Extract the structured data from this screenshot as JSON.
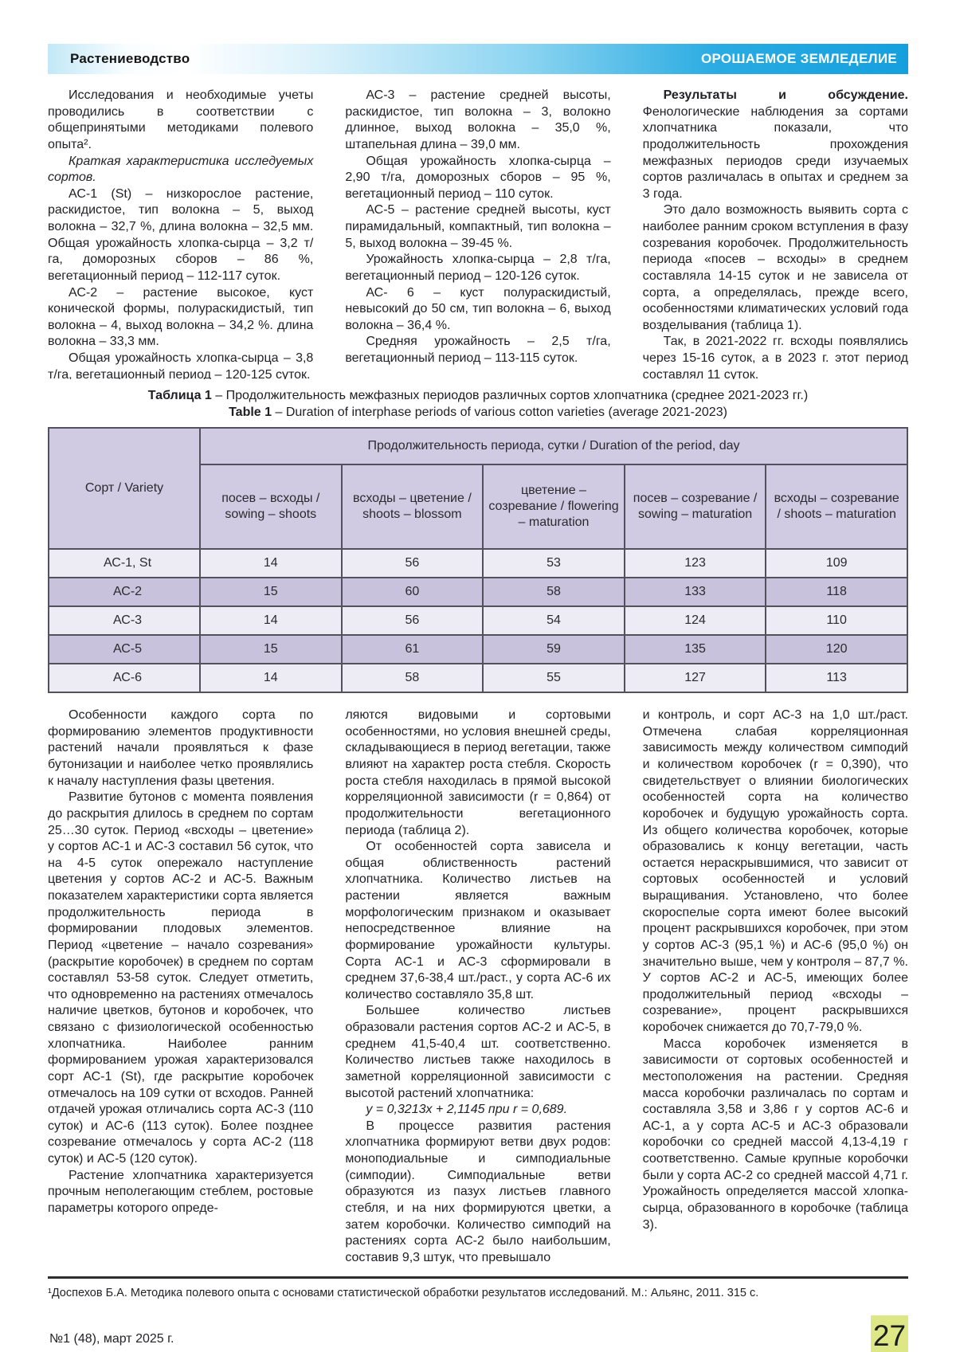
{
  "header": {
    "left": "Растениеводство",
    "right": "ОРОШАЕМОЕ ЗЕМЛЕДЕЛИЕ"
  },
  "colors": {
    "accent_blue": "#29abe2",
    "table_header_bg": "#d0cbe2",
    "table_row_light": "#edebf4",
    "table_row_dark": "#c8c2dc",
    "footer_green": "#d9e38a"
  },
  "top_columns": {
    "col1": {
      "p1": "Исследования и необходимые учеты проводились в соответствии с общепринятыми методиками полевого опыта².",
      "p2_italic": "Краткая характеристика исследуемых сортов.",
      "p3": "АС-1 (St) – низкорослое растение, раскидистое, тип волокна – 5, выход волокна – 32,7 %, длина волокна – 32,5 мм. Общая урожайность хлопка-сырца – 3,2 т/га, доморозных сборов – 86 %, вегетационный период – 112-117 суток.",
      "p4": "АС-2 – растение высокое, куст конической формы, полураскидистый, тип волокна – 4, выход волокна – 34,2 %. длина волокна – 33,3 мм.",
      "p5": "Общая урожайность хлопка-сырца – 3,8 т/га, вегетационный период – 120-125 суток."
    },
    "col2": {
      "p1": "АС-3 – растение средней высоты, раскидистое, тип волокна – 3, волокно длинное, выход волокна – 35,0 %, штапельная длина – 39,0 мм.",
      "p2": "Общая урожайность хлопка-сырца – 2,90 т/га, доморозных сборов – 95 %, вегетационный период – 110 суток.",
      "p3": "АС-5 – растение средней высоты, куст пирамидальный, компактный, тип волокна – 5, выход волокна – 39-45 %.",
      "p4": "Урожайность хлопка-сырца – 2,8 т/га, вегетационный период – 120-126 суток.",
      "p5": "АС- 6 – куст полураскидистый, невысокий до 50 см, тип волокна – 6, выход волокна – 36,4 %.",
      "p6": "Средняя урожайность – 2,5 т/га, вегетационный период – 113-115 суток."
    },
    "col3": {
      "p1_bold": "Результаты и обсуждение.",
      "p1_rest": " Фенологические наблюдения за сортами хлопчатника показали, что продолжительность прохождения межфазных периодов среди изучаемых сортов различалась в опытах и среднем за 3 года.",
      "p2": "Это дало возможность выявить сорта с наиболее ранним сроком вступления в фазу созревания коробочек. Продолжительность периода «посев – всходы» в среднем составляла 14-15 суток и не зависела от сорта, а определялась, прежде всего, особенностями климатических условий года возделывания (таблица 1).",
      "p3": "Так, в 2021-2022 гг. всходы появлялись через 15-16 суток, а в 2023 г. этот период составлял 11 суток."
    }
  },
  "table_caption": {
    "ru_label": "Таблица 1",
    "ru_text": " – Продолжительность межфазных периодов различных сортов хлопчатника (среднее 2021-2023 гг.)",
    "en_label": "Table 1",
    "en_text": " – Duration of interphase periods of various cotton varieties (average 2021-2023)"
  },
  "table": {
    "corner": "Сорт / Variety",
    "group_header": "Продолжительность периода, сутки / Duration of the period, day",
    "columns": [
      "посев – всходы / sowing – shoots",
      "всходы – цветение / shoots – blossom",
      "цветение – созревание / flowering – maturation",
      "посев – созревание / sowing – maturation",
      "всходы – созревание / shoots – maturation"
    ],
    "rows": [
      [
        "АС-1, St",
        "14",
        "56",
        "53",
        "123",
        "109"
      ],
      [
        "АС-2",
        "15",
        "60",
        "58",
        "133",
        "118"
      ],
      [
        "АС-3",
        "14",
        "56",
        "54",
        "124",
        "110"
      ],
      [
        "АС-5",
        "15",
        "61",
        "59",
        "135",
        "120"
      ],
      [
        "АС-6",
        "14",
        "58",
        "55",
        "127",
        "113"
      ]
    ]
  },
  "bottom_columns": {
    "col1": {
      "p1": "Особенности каждого сорта по формированию элементов продуктивности растений начали проявляться к фазе бутонизации и наиболее четко проявлялись к началу наступления фазы цветения.",
      "p2": "Развитие бутонов с момента появления до раскрытия длилось в среднем по сортам 25…30 суток. Период «всходы – цветение» у сортов АС-1 и АС-3 составил 56 суток, что на 4-5 суток опережало наступление цветения у сортов АС-2 и АС-5. Важным показателем характеристики сорта является продолжительность периода в формировании плодовых элементов. Период «цветение – начало созревания» (раскрытие коробочек) в среднем по сортам составлял 53-58 суток. Следует отметить, что одновременно на растениях отмечалось наличие цветков, бутонов и коробочек, что связано с физиологической особенностью хлопчатника. Наиболее ранним формированием урожая характеризовался сорт АС-1 (St), где раскрытие коробочек отмечалось на 109 сутки от всходов. Ранней отдачей урожая отличались сорта АС-3 (110 суток) и АС-6 (113 суток). Более позднее созревание отмечалось у сорта АС-2 (118 суток) и АС-5 (120 суток).",
      "p3": "Растение хлопчатника характеризуется прочным неполегающим стеблем, ростовые параметры которого опреде-"
    },
    "col2": {
      "p1": "ляются видовыми и сортовыми особенностями, но условия внешней среды, складывающиеся в период вегетации, также влияют на характер роста стебля. Скорость роста стебля находилась в прямой высокой корреляционной зависимости (r = 0,864) от продолжительности вегетационного периода (таблица 2).",
      "p2": "От особенностей сорта зависела и общая облиственность растений хлопчатника. Количество листьев на растении является важным морфологическим признаком и оказывает непосредственное влияние на формирование урожайности культуры. Сорта АС-1 и АС-3 сформировали в среднем 37,6-38,4 шт./раст., у сорта АС-6 их количество составляло 35,8 шт.",
      "p3": "Большее количество листьев образовали растения сортов АС-2 и АС-5, в среднем 41,5-40,4 шт. соответственно. Количество листьев также находилось в заметной корреляционной зависимости с высотой растений хлопчатника:",
      "p4_italic": "y = 0,3213x + 2,1145  при r = 0,689.",
      "p5": "В процессе развития растения хлопчатника формируют ветви двух родов: моноподиальные и симподиальные (симподии). Симподиальные ветви образуются из пазух листьев главного стебля, и на них формируются цветки, а затем коробочки. Количество симподий на растениях сорта АС-2 было наибольшим, составив 9,3 штук, что превышало"
    },
    "col3": {
      "p1": "и контроль, и сорт АС-3 на 1,0 шт./раст. Отмечена слабая корреляционная зависимость между количеством симподий и количеством коробочек (r = 0,390), что свидетельствует о влиянии биологических особенностей сорта на количество коробочек и будущую урожайность сорта. Из общего количества коробочек, которые образовались к концу вегетации, часть остается нераскрывшимися, что зависит от сортовых особенностей и условий выращивания. Установлено, что более скороспелые сорта имеют более высокий процент раскрывшихся коробочек, при этом у сортов АС-3 (95,1 %) и АС-6 (95,0 %) он значительно выше, чем у контроля – 87,7 %. У сортов АС-2 и АС-5, имеющих более продолжительный период «всходы – созревание», процент раскрывшихся коробочек снижается до 70,7-79,0 %.",
      "p2": "Масса коробочек изменяется в зависимости от сортовых особенностей и местоположения на растении. Средняя масса коробочки различалась по сортам и составляла 3,58 и 3,86 г у сортов АС-6 и АС-1, а у сорта АС-5 и АС-3 образовали коробочки со средней массой 4,13-4,19 г соответственно. Самые крупные коробочки были у сорта АС-2 со средней массой 4,71 г. Урожайность определяется массой хлопка-сырца, образованного в коробочке (таблица 3)."
    }
  },
  "footnote": "¹Доспехов Б.А. Методика полевого опыта с основами статистической обработки результатов исследований. М.: Альянс, 2011. 315 с.",
  "footer": {
    "issue": "№1 (48), март 2025 г.",
    "page_number": "27"
  }
}
